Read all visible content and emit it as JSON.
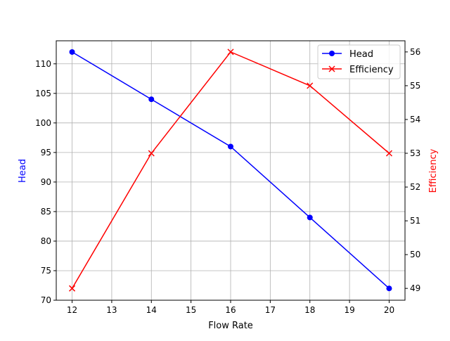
{
  "chart_data": {
    "type": "line",
    "title": "",
    "xlabel": "Flow Rate",
    "ylabel": "Head",
    "ylabel_right": "Efficiency",
    "x": [
      12,
      14,
      16,
      18,
      20
    ],
    "series": [
      {
        "name": "Head",
        "axis": "left",
        "values": [
          112,
          104,
          96,
          84,
          72
        ],
        "color": "#0000ff",
        "marker": "circle"
      },
      {
        "name": "Efficiency",
        "axis": "right",
        "values": [
          49,
          53,
          56,
          55,
          53
        ],
        "color": "#ff0000",
        "marker": "x"
      }
    ],
    "xticks": [
      "12",
      "13",
      "14",
      "15",
      "16",
      "17",
      "18",
      "19",
      "20"
    ],
    "yticks_left": [
      "70",
      "75",
      "80",
      "85",
      "90",
      "95",
      "100",
      "105",
      "110"
    ],
    "yticks_right": [
      "49",
      "50",
      "51",
      "52",
      "53",
      "54",
      "55",
      "56"
    ],
    "xlim": [
      11.6,
      20.4
    ],
    "ylim_left": [
      70,
      113.9
    ],
    "ylim_right": [
      48.65,
      56.33
    ],
    "grid": true,
    "legend_position": "upper right"
  },
  "legend": {
    "head": "Head",
    "efficiency": "Efficiency"
  },
  "labels": {
    "x": "Flow Rate",
    "y_left": "Head",
    "y_right": "Efficiency"
  }
}
